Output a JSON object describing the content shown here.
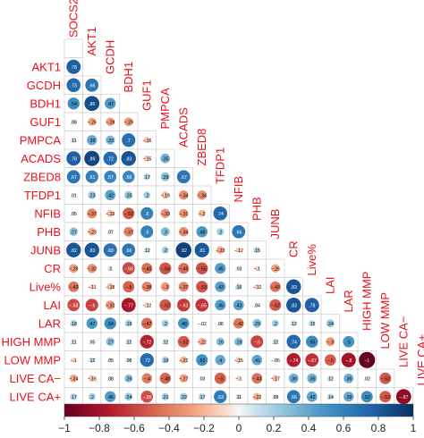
{
  "chart_data": {
    "type": "heatmap",
    "title": "",
    "variables": [
      "SOCS2",
      "AKT1",
      "GCDH",
      "BDH1",
      "GUF1",
      "PMPCA",
      "ACADS",
      "ZBED8",
      "TFDP1",
      "NFIB",
      "PHB",
      "JUNB",
      "CR",
      "Live%",
      "LAI",
      "LAR",
      "HIGH MMP",
      "LOW MMP",
      "LIVE CA−",
      "LIVE CA+"
    ],
    "lower_triangle": [
      [],
      [
        0.78
      ],
      [
        0.73,
        0.66
      ],
      [
        0.54,
        0.86,
        0.47
      ],
      [
        0.08,
        -0.25,
        -0.28,
        -0.29
      ],
      [
        0.11,
        0.39,
        0.33,
        0.7,
        -0.16
      ],
      [
        0.78,
        0.89,
        0.72,
        0.83,
        -0.15,
        0.35
      ],
      [
        0.67,
        0.61,
        0.57,
        0.56,
        0.17,
        0.29,
        0.67
      ],
      [
        0.01,
        0.23,
        0.42,
        0.25,
        0.2,
        -0.19,
        -0.34,
        -0.34
      ],
      [
        0.05,
        -0.37,
        -0.19,
        -0.52,
        0.6,
        -0.33,
        -0.31,
        -0.2,
        0.74
      ],
      [
        0.27,
        -0.23,
        0.07,
        -0.37,
        0.6,
        0.3,
        -0.34,
        0.48,
        0.2,
        0.66
      ],
      [
        0.82,
        0.83,
        0.69,
        0.66,
        0.12,
        0.2,
        0.92,
        0.81,
        -0.23,
        -0.12,
        0.15
      ],
      [
        -0.29,
        -0.32,
        0.1,
        -0.58,
        -0.45,
        -0.54,
        -0.45,
        -0.55,
        0.45,
        0.03,
        -0.1,
        -0.26
      ],
      [
        -0.43,
        -0.11,
        -0.18,
        -0.5,
        -0.38,
        -0.3,
        -0.37,
        -0.53,
        0.43,
        0.16,
        -0.12,
        -0.43,
        0.83
      ],
      [
        -0.58,
        -0.6,
        -0.31,
        -0.77,
        -0.12,
        -0.52,
        -0.63,
        -0.65,
        0.45,
        0.43,
        0.04,
        -0.52,
        0.83,
        0.78
      ],
      [
        0.18,
        0.47,
        0.54,
        0.19,
        -0.47,
        0.2,
        0.48,
        -0.02,
        0.06,
        -0.42,
        0.29,
        0.2,
        0.12,
        0.15,
        0.24
      ],
      [
        0.11,
        0.05,
        0.27,
        0.12,
        -0.72,
        0.12,
        -0.52,
        -0.22,
        0.26,
        0.28,
        -0.6,
        0.12,
        0.74,
        0.55,
        -0.3,
        0.5
      ],
      [
        -0.1,
        0.12,
        0.05,
        0.08,
        0.72,
        0.19,
        -0.21,
        0.52,
        0.4,
        -0.15,
        0.41,
        -0.06,
        -0.74,
        -0.67,
        -0.5,
        -0.8,
        -1
      ],
      [
        -0.24,
        -0.16,
        0.08,
        0.26,
        -0.4,
        -0.48,
        -0.27,
        0.03,
        -0.5,
        -0.1,
        -0.43,
        -0.17,
        0.36,
        0.36,
        0.12,
        0.36,
        0.02,
        -0.52
      ],
      [
        0.17,
        0.2,
        0.46,
        0.24,
        -0.56,
        0.21,
        0.22,
        0.17,
        0.63,
        0.11,
        -0.22,
        0.09,
        0.66,
        0.42,
        0.14,
        0.39,
        0.52,
        -0.52,
        -0.87
      ]
    ],
    "colorbar": {
      "range": [
        -1,
        1
      ],
      "ticks": [
        -1,
        -0.8,
        -0.6,
        -0.4,
        -0.2,
        0,
        0.2,
        0.4,
        0.6,
        0.8,
        1
      ],
      "tick_labels": [
        "−1",
        "−0.8",
        "−0.6",
        "−0.4",
        "−0.2",
        "0",
        "0.2",
        "0.4",
        "0.6",
        "0.8",
        "1"
      ]
    },
    "colors": {
      "negative": "#67001f",
      "neutral": "#f7f7f7",
      "positive": "#053061",
      "label": "#e8101c",
      "grid": "#c8c8c8"
    }
  }
}
